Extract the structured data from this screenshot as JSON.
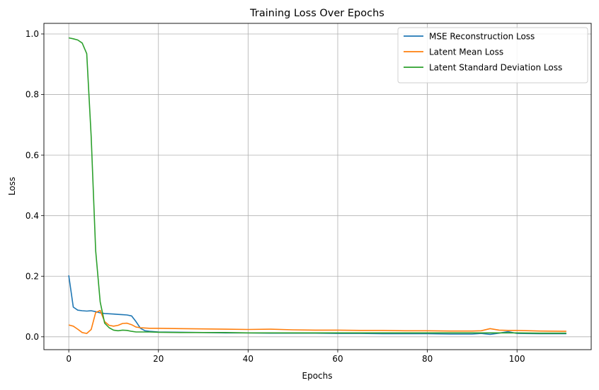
{
  "chart_data": {
    "type": "line",
    "title": "Training Loss Over Epochs",
    "xlabel": "Epochs",
    "ylabel": "Loss",
    "xlim": [
      -5.55,
      116.55
    ],
    "ylim": [
      -0.0425,
      1.035
    ],
    "xticks": [
      0,
      20,
      40,
      60,
      80,
      100
    ],
    "yticks": [
      0.0,
      0.2,
      0.4,
      0.6,
      0.8,
      1.0
    ],
    "xtick_labels": [
      "0",
      "20",
      "40",
      "60",
      "80",
      "100"
    ],
    "ytick_labels": [
      "0.0",
      "0.2",
      "0.4",
      "0.6",
      "0.8",
      "1.0"
    ],
    "grid": true,
    "legend_position": "top-right",
    "series": [
      {
        "name": "MSE Reconstruction Loss",
        "color": "#1f77b4",
        "x": [
          0,
          1,
          2,
          3,
          4,
          5,
          6,
          7,
          8,
          9,
          10,
          11,
          12,
          13,
          14,
          15,
          16,
          17,
          18,
          19,
          20,
          25,
          30,
          35,
          40,
          45,
          50,
          55,
          60,
          65,
          70,
          75,
          80,
          85,
          90,
          92,
          94,
          96,
          98,
          100,
          105,
          111
        ],
        "y": [
          0.203,
          0.098,
          0.088,
          0.086,
          0.085,
          0.086,
          0.083,
          0.079,
          0.077,
          0.076,
          0.075,
          0.074,
          0.073,
          0.072,
          0.069,
          0.05,
          0.028,
          0.02,
          0.018,
          0.017,
          0.016,
          0.015,
          0.014,
          0.013,
          0.013,
          0.012,
          0.012,
          0.012,
          0.011,
          0.011,
          0.01,
          0.01,
          0.01,
          0.009,
          0.009,
          0.011,
          0.008,
          0.012,
          0.017,
          0.011,
          0.01,
          0.01
        ]
      },
      {
        "name": "Latent Mean Loss",
        "color": "#ff7f0e",
        "x": [
          0,
          1,
          2,
          3,
          4,
          5,
          6,
          7,
          8,
          9,
          10,
          11,
          12,
          13,
          14,
          15,
          16,
          17,
          18,
          20,
          25,
          30,
          35,
          40,
          45,
          50,
          55,
          60,
          65,
          70,
          75,
          80,
          85,
          90,
          92,
          94,
          96,
          98,
          100,
          105,
          111
        ],
        "y": [
          0.039,
          0.035,
          0.025,
          0.014,
          0.011,
          0.024,
          0.08,
          0.087,
          0.05,
          0.038,
          0.035,
          0.038,
          0.044,
          0.045,
          0.04,
          0.032,
          0.03,
          0.029,
          0.028,
          0.028,
          0.027,
          0.026,
          0.025,
          0.024,
          0.025,
          0.023,
          0.022,
          0.022,
          0.021,
          0.021,
          0.02,
          0.02,
          0.019,
          0.019,
          0.02,
          0.027,
          0.022,
          0.021,
          0.021,
          0.019,
          0.018
        ]
      },
      {
        "name": "Latent Standard Deviation Loss",
        "color": "#2ca02c",
        "x": [
          0,
          1,
          2,
          3,
          4,
          5,
          6,
          7,
          8,
          9,
          10,
          11,
          12,
          13,
          14,
          15,
          16,
          17,
          18,
          20,
          25,
          30,
          35,
          40,
          45,
          50,
          55,
          60,
          65,
          70,
          75,
          80,
          85,
          90,
          95,
          100,
          105,
          111
        ],
        "y": [
          0.987,
          0.984,
          0.98,
          0.97,
          0.935,
          0.66,
          0.285,
          0.115,
          0.045,
          0.03,
          0.022,
          0.02,
          0.022,
          0.021,
          0.018,
          0.016,
          0.016,
          0.016,
          0.016,
          0.015,
          0.014,
          0.014,
          0.014,
          0.013,
          0.013,
          0.013,
          0.013,
          0.013,
          0.013,
          0.013,
          0.013,
          0.013,
          0.013,
          0.013,
          0.013,
          0.013,
          0.012,
          0.012
        ]
      }
    ]
  }
}
